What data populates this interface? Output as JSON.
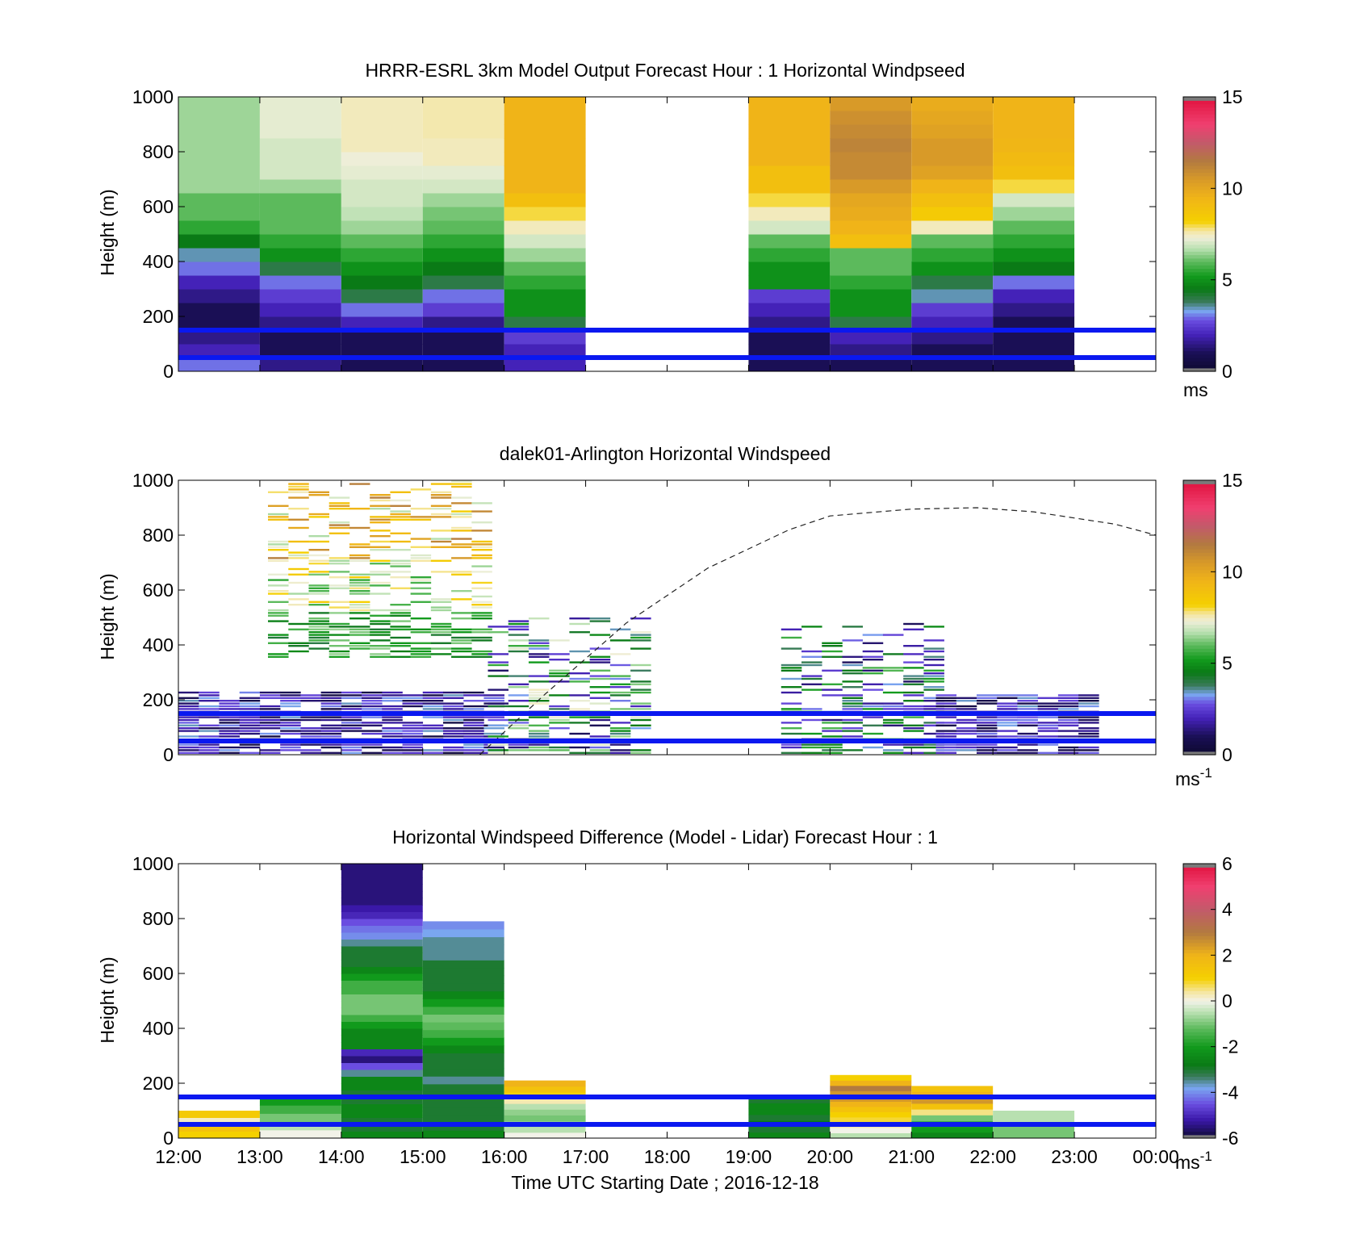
{
  "chart_data": [
    {
      "type": "heatmap",
      "title": "HRRR-ESRL 3km Model Output   Forecast Hour : 1 Horizontal Windpseed",
      "ylabel": "Height (m)",
      "ylim": [
        0,
        1000
      ],
      "yticks": [
        "0",
        "200",
        "400",
        "600",
        "800",
        "1000"
      ],
      "xlim": [
        0,
        12
      ],
      "colorbar": {
        "range": [
          0,
          15
        ],
        "ticks": [
          "0",
          "5",
          "10",
          "15"
        ],
        "unit": "ms"
      },
      "reference_lines_m": [
        50,
        150
      ],
      "cell_height_m": 50,
      "columns": [
        {
          "hour": 0,
          "values": [
            3,
            2,
            1.5,
            1,
            1,
            1.5,
            2,
            3,
            3.5,
            4.5,
            5.5,
            6,
            6,
            6.5,
            6.5,
            6.5,
            6.5,
            6.5,
            6.5,
            6.5
          ]
        },
        {
          "hour": 1,
          "values": [
            1.5,
            1,
            1,
            1.5,
            2,
            2.5,
            3,
            4,
            5,
            5.5,
            6,
            6,
            6,
            6.5,
            7,
            7,
            7,
            7.2,
            7.2,
            7.2
          ]
        },
        {
          "hour": 2,
          "values": [
            1,
            1,
            1,
            2,
            3,
            4,
            4.5,
            5,
            5.5,
            6,
            6.5,
            6.8,
            7,
            7,
            7.2,
            7.3,
            7.5,
            7.5,
            7.5,
            7.5
          ]
        },
        {
          "hour": 3,
          "values": [
            1,
            1,
            1,
            1.5,
            2.5,
            3,
            4,
            4.5,
            5,
            5.5,
            6,
            6.2,
            6.5,
            7,
            7.2,
            7.5,
            7.5,
            7.6,
            7.6,
            7.6
          ]
        },
        {
          "hour": 4,
          "values": [
            2,
            2,
            2.5,
            4,
            5,
            5,
            5.5,
            6,
            6.5,
            7,
            7.5,
            8,
            9,
            9.5,
            9.5,
            9.5,
            9.5,
            9.5,
            9.5,
            9.5
          ]
        },
        {
          "hour": 7,
          "values": [
            1,
            1,
            1,
            1.5,
            2,
            2.5,
            5,
            5,
            5.5,
            6,
            7,
            7.5,
            8,
            9,
            9,
            9.5,
            9.5,
            9.5,
            9.5,
            9.5
          ]
        },
        {
          "hour": 8,
          "values": [
            1,
            1.5,
            2,
            4,
            5,
            5,
            5.5,
            6,
            6,
            9,
            9.5,
            9.8,
            10,
            10.5,
            11,
            11,
            11.2,
            11,
            10.8,
            10.5
          ]
        },
        {
          "hour": 9,
          "values": [
            1,
            1,
            1.5,
            2,
            2.5,
            3.5,
            4,
            5,
            5.5,
            6,
            7.5,
            8.5,
            9,
            9.5,
            10.2,
            10.5,
            10.5,
            10.2,
            10,
            9.8
          ]
        },
        {
          "hour": 10,
          "values": [
            1,
            1,
            1,
            1,
            1.5,
            2,
            3,
            4.5,
            5,
            5.5,
            6,
            6.5,
            7,
            8,
            9,
            9.2,
            9.4,
            9.5,
            9.5,
            9.5
          ]
        }
      ]
    },
    {
      "type": "heatmap",
      "title": "dalek01-Arlington  Horizontal Windspeed",
      "ylabel": "Height (m)",
      "ylim": [
        0,
        1000
      ],
      "yticks": [
        "0",
        "200",
        "400",
        "600",
        "800",
        "1000"
      ],
      "xlim": [
        0,
        12
      ],
      "colorbar": {
        "range": [
          0,
          15
        ],
        "ticks": [
          "0",
          "5",
          "10",
          "15"
        ],
        "unit": "ms",
        "unit_exponent": "-1"
      },
      "reference_lines_m": [
        50,
        150
      ],
      "curve": {
        "style": "dashed",
        "points": [
          [
            3.7,
            0
          ],
          [
            4.5,
            220
          ],
          [
            5.5,
            480
          ],
          [
            6.5,
            680
          ],
          [
            7.5,
            820
          ],
          [
            8,
            870
          ],
          [
            9,
            895
          ],
          [
            9.8,
            900
          ],
          [
            10.5,
            885
          ],
          [
            11.5,
            840
          ],
          [
            12,
            800
          ]
        ]
      },
      "segments": [
        {
          "x0": 1.1,
          "x1": 3.8,
          "h0": 350,
          "h1": 1000,
          "profile": "lower-green-upper-orange"
        },
        {
          "x0": 0,
          "x1": 3.8,
          "h0": 0,
          "h1": 230,
          "profile": "low-speed"
        },
        {
          "x0": 3.8,
          "x1": 5.8,
          "h0": 0,
          "h1": 500,
          "profile": "mixed-light"
        },
        {
          "x0": 7.4,
          "x1": 9.3,
          "h0": 0,
          "h1": 480,
          "profile": "mixed-green"
        },
        {
          "x0": 9.3,
          "x1": 11.1,
          "h0": 0,
          "h1": 220,
          "profile": "low-speed"
        }
      ]
    },
    {
      "type": "heatmap",
      "title": "Horizontal Windspeed Difference (Model - Lidar) Forecast Hour : 1",
      "ylabel": "Height (m)",
      "xlabel": "Time UTC  Starting Date ; 2016-12-18",
      "ylim": [
        0,
        1000
      ],
      "yticks": [
        "0",
        "200",
        "400",
        "600",
        "800",
        "1000"
      ],
      "xlim": [
        0,
        12
      ],
      "xticks": [
        "12:00",
        "13:00",
        "14:00",
        "15:00",
        "16:00",
        "17:00",
        "18:00",
        "19:00",
        "20:00",
        "21:00",
        "22:00",
        "23:00",
        "00:00"
      ],
      "colorbar": {
        "range": [
          -6,
          6
        ],
        "ticks": [
          "-6",
          "-4",
          "-2",
          "0",
          "2",
          "4",
          "6"
        ],
        "unit": "ms",
        "unit_exponent": "-1"
      },
      "reference_lines_m": [
        50,
        150
      ],
      "columns": [
        {
          "hour": 0,
          "top": 100,
          "values": [
            1,
            1.5,
            0.2,
            1.2
          ]
        },
        {
          "hour": 1,
          "top": 150,
          "values": [
            0,
            -0.5,
            -1,
            -1.5,
            -2
          ]
        },
        {
          "hour": 2,
          "top": 1000,
          "values": [
            -2.5,
            -3,
            -3,
            -2.5,
            -2.5,
            -3,
            -3,
            -2.5,
            -2.5,
            -3.5,
            -4.5,
            -5.5,
            -5,
            -2.5,
            -2.5,
            -2.5,
            -2,
            -1.5,
            -1,
            -1,
            -1,
            -1.5,
            -1.5,
            -2,
            -2.5,
            -3,
            -3,
            -3,
            -3.5,
            -4,
            -4.2,
            -4.5,
            -5,
            -5.2,
            -5.5,
            -5.5,
            -5.5,
            -5.5,
            -5.5,
            -5.5
          ]
        },
        {
          "hour": 3,
          "top": 790,
          "values": [
            -2.5,
            -3,
            -3,
            -3,
            -3,
            -3,
            -3,
            -3.5,
            -3,
            -3,
            -3,
            -2.5,
            -2,
            -1.5,
            -1.2,
            -1,
            -1.5,
            -2,
            -2.5,
            -3,
            -3,
            -3,
            -3,
            -3.5,
            -3.5,
            -3.5,
            -3.8,
            -4
          ]
        },
        {
          "hour": 4,
          "top": 210,
          "values": [
            0,
            -0.5,
            -0.8,
            -1,
            -0.8,
            -0.5,
            0.3,
            1,
            1.5,
            2
          ]
        },
        {
          "hour": 7,
          "top": 150,
          "values": [
            -2.5,
            -3,
            -2.8,
            -3,
            -2.5,
            -2.5,
            -3
          ]
        },
        {
          "hour": 8,
          "top": 230,
          "values": [
            -0.5,
            0,
            0.3,
            0.8,
            1,
            1.5,
            2,
            2.5,
            2.5,
            3,
            2,
            1
          ]
        },
        {
          "hour": 9,
          "top": 190,
          "values": [
            -2.5,
            -2,
            -1.5,
            -1,
            0.5,
            1.5,
            2.5,
            2,
            1.5
          ]
        },
        {
          "hour": 10,
          "top": 100,
          "values": [
            -1,
            -0.5
          ]
        }
      ]
    }
  ]
}
